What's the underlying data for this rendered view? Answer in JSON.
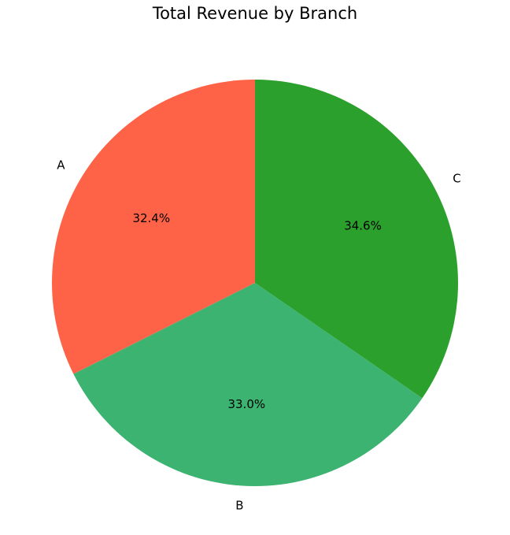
{
  "chart_data": {
    "type": "pie",
    "title": "Total Revenue by Branch",
    "categories": [
      "A",
      "B",
      "C"
    ],
    "values": [
      32.4,
      33.0,
      34.6
    ],
    "value_labels": [
      "32.4%",
      "33.0%",
      "34.6%"
    ],
    "colors": [
      "#ff6347",
      "#3cb371",
      "#2ca02c"
    ]
  }
}
